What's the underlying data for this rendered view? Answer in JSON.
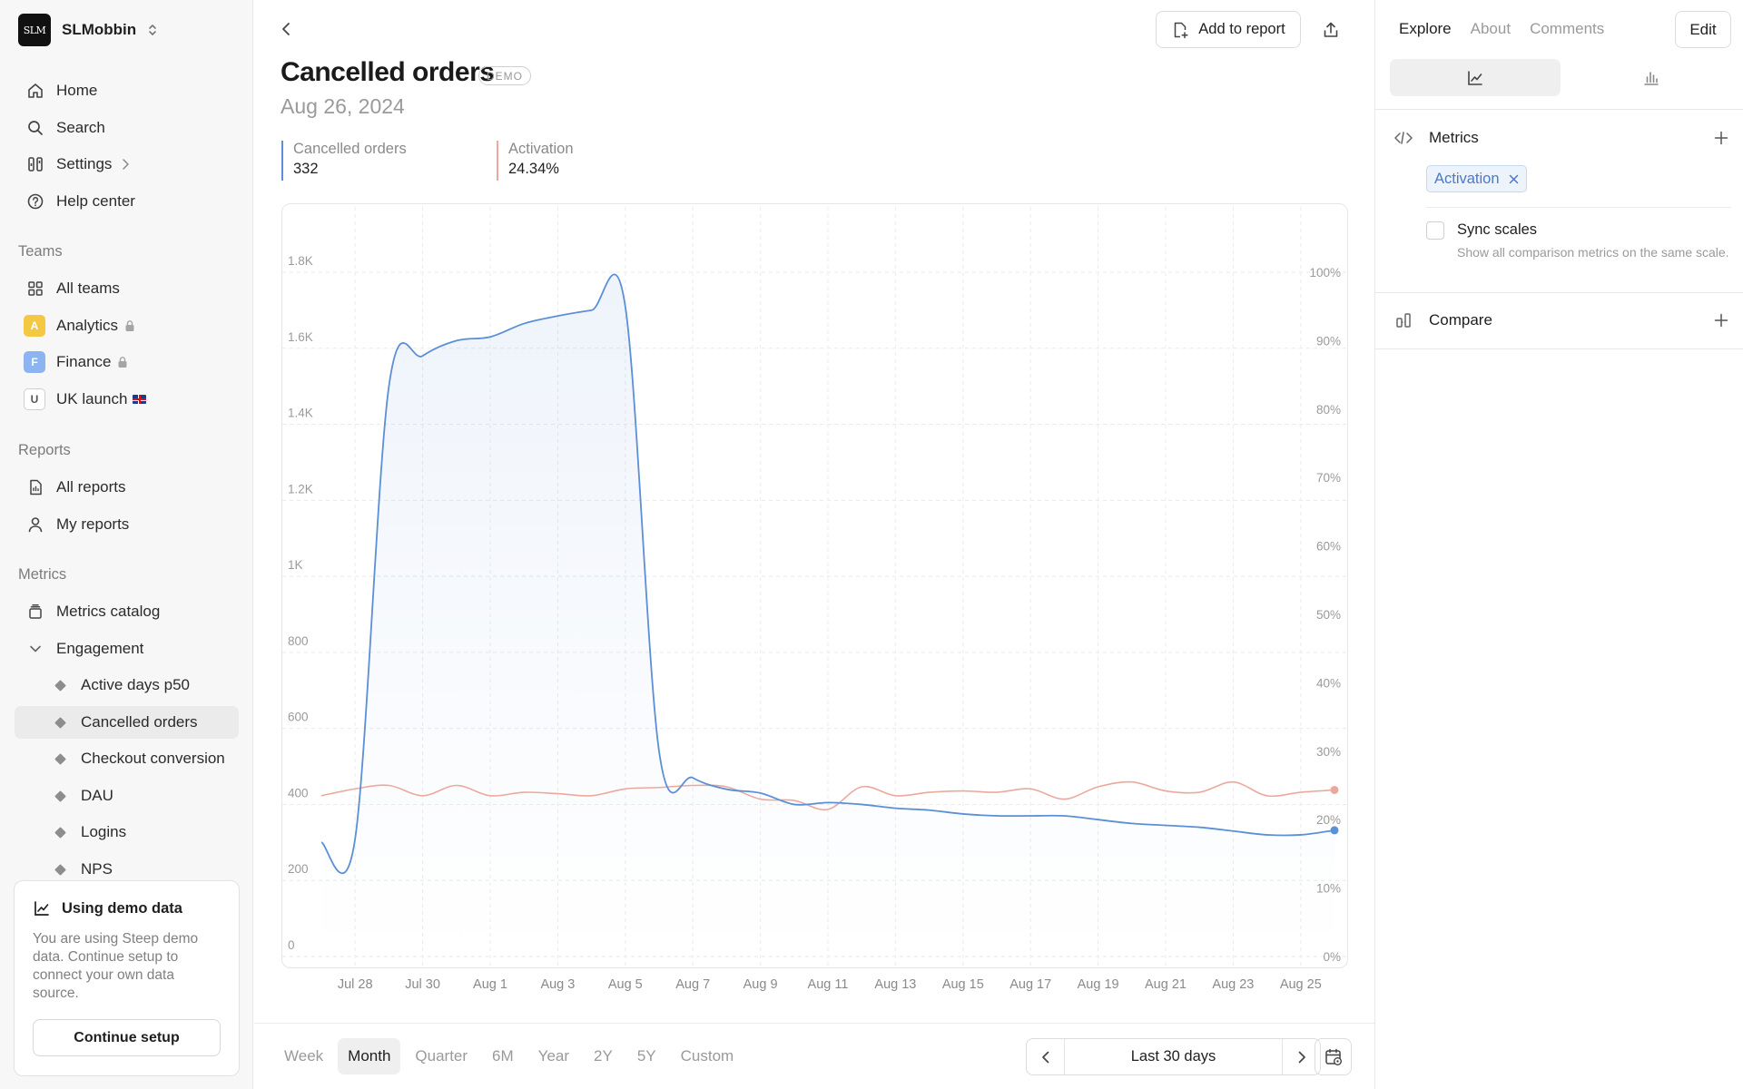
{
  "workspace": {
    "logo_text": "SLM",
    "name": "SLMobbin"
  },
  "sidebar": {
    "nav": [
      {
        "label": "Home",
        "icon": "home-icon"
      },
      {
        "label": "Search",
        "icon": "search-icon"
      },
      {
        "label": "Settings",
        "icon": "settings-icon"
      },
      {
        "label": "Help center",
        "icon": "help-icon"
      }
    ],
    "teams_title": "Teams",
    "teams": [
      {
        "label": "All teams",
        "icon": "grid-icon"
      },
      {
        "label": "Analytics",
        "badge": "A",
        "badge_color": "#f5c843",
        "locked": true
      },
      {
        "label": "Finance",
        "badge": "F",
        "badge_color": "#8cb4f0",
        "locked": true
      },
      {
        "label": "UK launch",
        "badge": "U",
        "badge_color": "#ffffff"
      }
    ],
    "reports_title": "Reports",
    "reports": [
      {
        "label": "All reports",
        "icon": "report-icon"
      },
      {
        "label": "My reports",
        "icon": "user-icon"
      }
    ],
    "metrics_title": "Metrics",
    "metrics_catalog": "Metrics catalog",
    "engagement": "Engagement",
    "metric_items": [
      "Active days p50",
      "Cancelled orders",
      "Checkout conversion",
      "DAU",
      "Logins",
      "NPS"
    ],
    "active_metric": "Cancelled orders"
  },
  "demo_card": {
    "title": "Using demo data",
    "text": "You are using Steep demo data. Continue setup to connect your own data source.",
    "button": "Continue setup"
  },
  "header": {
    "add_to_report": "Add to report",
    "title": "Cancelled orders",
    "badge": "DEMO",
    "date": "Aug 26, 2024"
  },
  "legend": [
    {
      "name": "Cancelled orders",
      "value": "332",
      "color": "#5b8fd6"
    },
    {
      "name": "Activation",
      "value": "24.34%",
      "color": "#eba99d"
    }
  ],
  "chart_data": {
    "type": "line",
    "x": [
      "Jul 27",
      "Jul 28",
      "Jul 29",
      "Jul 30",
      "Jul 31",
      "Aug 1",
      "Aug 2",
      "Aug 3",
      "Aug 4",
      "Aug 5",
      "Aug 6",
      "Aug 7",
      "Aug 8",
      "Aug 9",
      "Aug 10",
      "Aug 11",
      "Aug 12",
      "Aug 13",
      "Aug 14",
      "Aug 15",
      "Aug 16",
      "Aug 17",
      "Aug 18",
      "Aug 19",
      "Aug 20",
      "Aug 21",
      "Aug 22",
      "Aug 23",
      "Aug 24",
      "Aug 25",
      "Aug 26"
    ],
    "x_tick_labels": [
      "Jul 28",
      "Jul 30",
      "Aug 1",
      "Aug 3",
      "Aug 5",
      "Aug 7",
      "Aug 9",
      "Aug 11",
      "Aug 13",
      "Aug 15",
      "Aug 17",
      "Aug 19",
      "Aug 21",
      "Aug 23",
      "Aug 25"
    ],
    "y_left_ticks": [
      "0",
      "200",
      "400",
      "600",
      "800",
      "1K",
      "1.2K",
      "1.4K",
      "1.6K",
      "1.8K"
    ],
    "y_right_ticks": [
      "0%",
      "10%",
      "20%",
      "30%",
      "40%",
      "50%",
      "60%",
      "70%",
      "80%",
      "90%",
      "100%"
    ],
    "y_left_range": [
      0,
      1800
    ],
    "y_right_range": [
      0,
      100
    ],
    "series": [
      {
        "name": "Cancelled orders",
        "axis": "left",
        "color": "#5b8fd6",
        "values": [
          300,
          310,
          1500,
          1580,
          1620,
          1630,
          1665,
          1685,
          1700,
          1710,
          540,
          470,
          440,
          430,
          400,
          405,
          400,
          390,
          385,
          375,
          370,
          370,
          370,
          360,
          350,
          345,
          340,
          330,
          320,
          320,
          332
        ]
      },
      {
        "name": "Activation",
        "axis": "right",
        "color": "#eba99d",
        "values": [
          23.5,
          24.5,
          25,
          23.5,
          25,
          23.5,
          24,
          23.8,
          23.5,
          24.5,
          24.7,
          25,
          24.8,
          23,
          22.8,
          21.5,
          24.8,
          23.5,
          24,
          24.2,
          24,
          24.5,
          23,
          24.8,
          25.5,
          24.2,
          24,
          25.5,
          23.5,
          24,
          24.34
        ]
      }
    ]
  },
  "ranges": [
    "Week",
    "Month",
    "Quarter",
    "6M",
    "Year",
    "2Y",
    "5Y",
    "Custom"
  ],
  "active_range": "Month",
  "pager_label": "Last 30 days",
  "panel": {
    "tabs": [
      "Explore",
      "About",
      "Comments"
    ],
    "active_tab": "Explore",
    "edit": "Edit",
    "metrics_label": "Metrics",
    "chip": "Activation",
    "sync_label": "Sync scales",
    "sync_desc": "Show all comparison metrics on the same scale.",
    "compare_label": "Compare"
  }
}
